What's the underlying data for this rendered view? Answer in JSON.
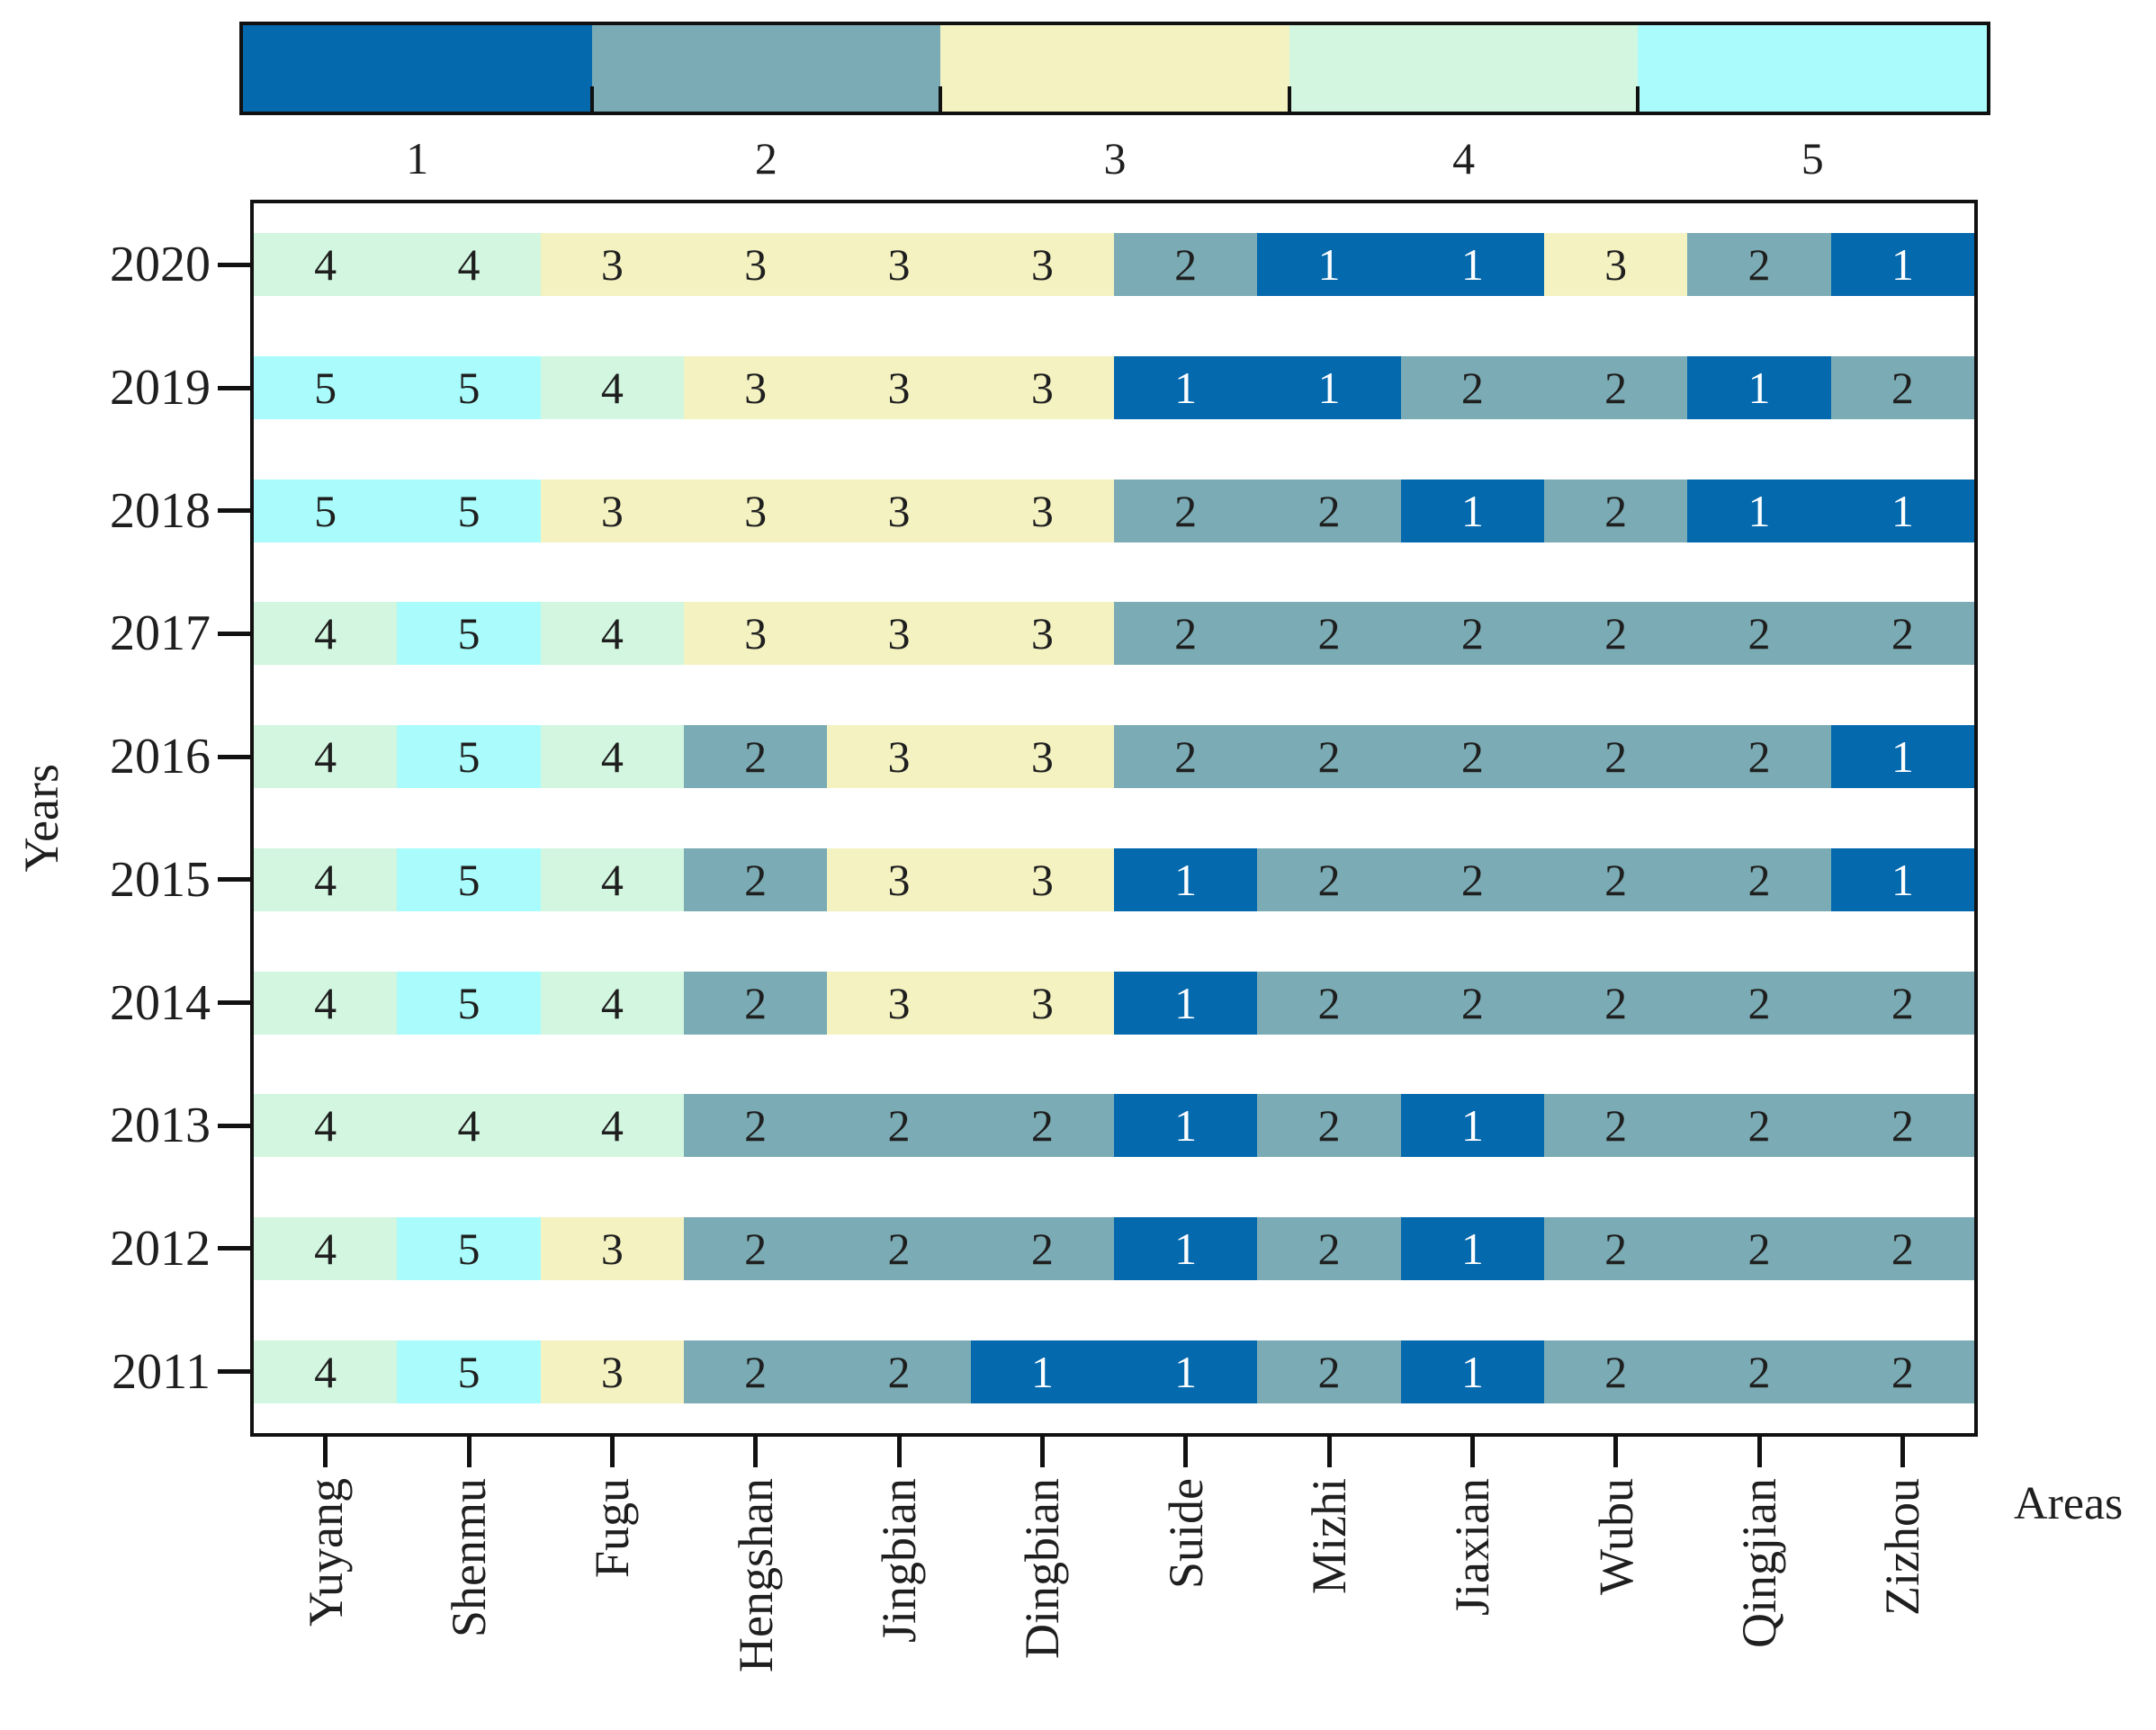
{
  "chart_data": {
    "type": "heatmap",
    "title": "",
    "xlabel": "Areas",
    "ylabel": "Years",
    "legend_position": "top",
    "grid": false,
    "x_categories": [
      "Yuyang",
      "Shenmu",
      "Fugu",
      "Hengshan",
      "Jingbian",
      "Dingbian",
      "Suide",
      "Mizhi",
      "Jiaxian",
      "Wubu",
      "Qingjian",
      "Zizhou"
    ],
    "y_categories": [
      "2020",
      "2019",
      "2018",
      "2017",
      "2016",
      "2015",
      "2014",
      "2013",
      "2012",
      "2011"
    ],
    "values": [
      [
        4,
        4,
        3,
        3,
        3,
        3,
        2,
        1,
        1,
        3,
        2,
        1
      ],
      [
        5,
        5,
        4,
        3,
        3,
        3,
        1,
        1,
        2,
        2,
        1,
        2
      ],
      [
        5,
        5,
        3,
        3,
        3,
        3,
        2,
        2,
        1,
        2,
        1,
        1
      ],
      [
        4,
        5,
        4,
        3,
        3,
        3,
        2,
        2,
        2,
        2,
        2,
        2
      ],
      [
        4,
        5,
        4,
        2,
        3,
        3,
        2,
        2,
        2,
        2,
        2,
        1
      ],
      [
        4,
        5,
        4,
        2,
        3,
        3,
        1,
        2,
        2,
        2,
        2,
        1
      ],
      [
        4,
        5,
        4,
        2,
        3,
        3,
        1,
        2,
        2,
        2,
        2,
        2
      ],
      [
        4,
        4,
        4,
        2,
        2,
        2,
        1,
        2,
        1,
        2,
        2,
        2
      ],
      [
        4,
        5,
        3,
        2,
        2,
        2,
        1,
        2,
        1,
        2,
        2,
        2
      ],
      [
        4,
        5,
        3,
        2,
        2,
        1,
        1,
        2,
        1,
        2,
        2,
        2
      ]
    ],
    "scale": {
      "labels": [
        "1",
        "2",
        "3",
        "4",
        "5"
      ],
      "colors": [
        "#0569AE",
        "#7BACB5",
        "#F4F2C1",
        "#D2F6DF",
        "#AAFCFC"
      ],
      "value_text_colors": [
        "#FFFFFF",
        "#1F1F1F",
        "#1F1F1F",
        "#1F1F1F",
        "#1F1F1F"
      ]
    },
    "axis_color": "#111111",
    "background": "#FFFFFF"
  }
}
